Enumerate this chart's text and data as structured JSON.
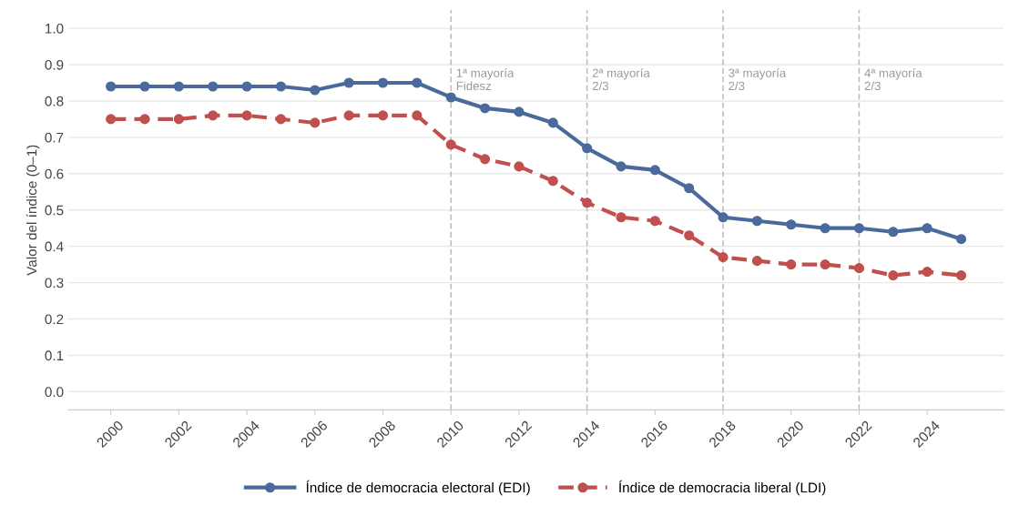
{
  "chart_data": {
    "type": "line",
    "ylabel": "Valor del índice (0–1)",
    "x": [
      2000,
      2001,
      2002,
      2003,
      2004,
      2005,
      2006,
      2007,
      2008,
      2009,
      2010,
      2011,
      2012,
      2013,
      2014,
      2015,
      2016,
      2017,
      2018,
      2019,
      2020,
      2021,
      2022,
      2023,
      2024,
      2025
    ],
    "series": [
      {
        "name": "Índice de democracia electoral (EDI)",
        "color": "#4a6a9b",
        "line_style": "solid",
        "values": [
          0.84,
          0.84,
          0.84,
          0.84,
          0.84,
          0.84,
          0.83,
          0.85,
          0.85,
          0.85,
          0.81,
          0.78,
          0.77,
          0.74,
          0.67,
          0.62,
          0.61,
          0.56,
          0.48,
          0.47,
          0.46,
          0.45,
          0.45,
          0.44,
          0.45,
          0.42
        ]
      },
      {
        "name": "Índice de democracia liberal (LDI)",
        "color": "#c0504d",
        "line_style": "dashed",
        "values": [
          0.75,
          0.75,
          0.75,
          0.76,
          0.76,
          0.75,
          0.74,
          0.76,
          0.76,
          0.76,
          0.68,
          0.64,
          0.62,
          0.58,
          0.52,
          0.48,
          0.47,
          0.43,
          0.37,
          0.36,
          0.35,
          0.35,
          0.34,
          0.32,
          0.33,
          0.32
        ]
      }
    ],
    "xlim": [
      1998.75,
      2026.25
    ],
    "xticks": [
      2000,
      2002,
      2004,
      2006,
      2008,
      2010,
      2012,
      2014,
      2016,
      2018,
      2020,
      2022,
      2024
    ],
    "ylim": [
      -0.05,
      1.05
    ],
    "yticks": [
      {
        "value": 0,
        "label": "0.0"
      },
      0.1,
      0.2,
      0.3,
      0.4,
      0.5,
      0.6,
      0.7,
      0.8,
      0.9,
      {
        "value": 1,
        "label": "1.0"
      }
    ],
    "ref_lines": [
      {
        "axis": "x",
        "value": 2010,
        "label": "1ª mayoría\nFidesz",
        "color": "#bbbbbb",
        "line_style": "dashed"
      },
      {
        "axis": "x",
        "value": 2014,
        "label": "2ª mayoría\n2/3",
        "color": "#bbbbbb",
        "line_style": "dashed"
      },
      {
        "axis": "x",
        "value": 2018,
        "label": "3ª mayoría\n2/3",
        "color": "#bbbbbb",
        "line_style": "dashed"
      },
      {
        "axis": "x",
        "value": 2022,
        "label": "4ª mayoría\n2/3",
        "color": "#bbbbbb",
        "line_style": "dashed"
      }
    ],
    "grid": "y",
    "legend": "bottom",
    "marker": "circle"
  }
}
